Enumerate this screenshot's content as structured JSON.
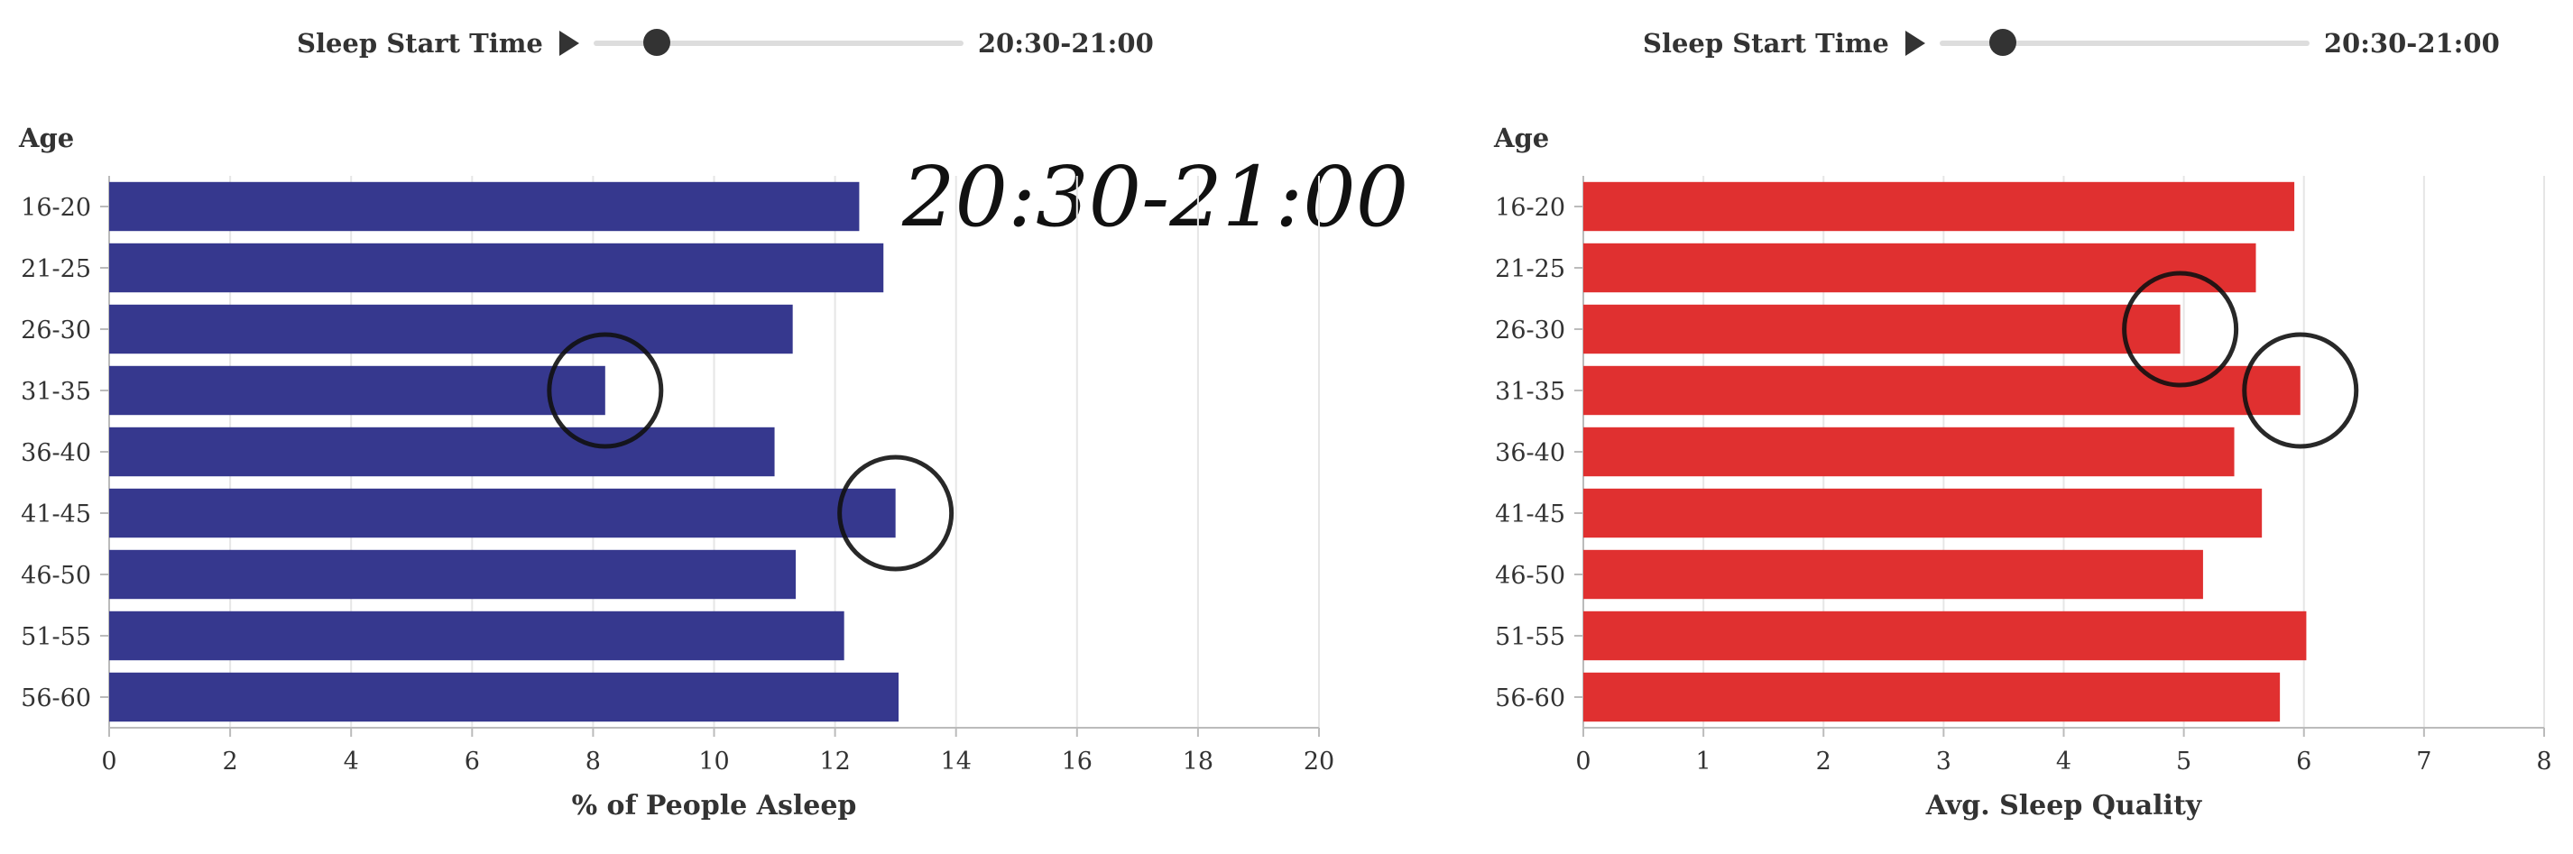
{
  "left_panel": {
    "slider": {
      "label": "Sleep Start Time",
      "value_text": "20:30-21:00",
      "position": 0.17
    },
    "annotation_text": "20:30-21:00"
  },
  "right_panel": {
    "slider": {
      "label": "Sleep Start Time",
      "value_text": "20:30-21:00",
      "position": 0.17
    }
  },
  "colors": {
    "left_bars": "#36388e",
    "right_bars": "#e03030",
    "grid": "#e6e6e6",
    "axis_text": "#333333"
  },
  "chart_data": [
    {
      "type": "bar",
      "orientation": "horizontal",
      "ylabel": "Age",
      "xlabel": "% of People Asleep",
      "categories": [
        "16-20",
        "21-25",
        "26-30",
        "31-35",
        "36-40",
        "41-45",
        "46-50",
        "51-55",
        "56-60"
      ],
      "values": [
        12.4,
        12.8,
        11.3,
        8.2,
        11.0,
        13.0,
        11.35,
        12.15,
        13.05
      ],
      "xlim": [
        0,
        20
      ],
      "xticks": [
        "0",
        "2",
        "4",
        "6",
        "8",
        "10",
        "12",
        "14",
        "16",
        "18",
        "20"
      ],
      "grid": true,
      "circled": [
        "31-35",
        "41-45"
      ]
    },
    {
      "type": "bar",
      "orientation": "horizontal",
      "ylabel": "Age",
      "xlabel": "Avg. Sleep Quality",
      "categories": [
        "16-20",
        "21-25",
        "26-30",
        "31-35",
        "36-40",
        "41-45",
        "46-50",
        "51-55",
        "56-60"
      ],
      "values": [
        5.92,
        5.6,
        4.97,
        5.97,
        5.42,
        5.65,
        5.16,
        6.02,
        5.8
      ],
      "xlim": [
        0,
        8
      ],
      "xticks": [
        "0",
        "1",
        "2",
        "3",
        "4",
        "5",
        "6",
        "7",
        "8"
      ],
      "grid": true,
      "circled": [
        "26-30",
        "31-35"
      ]
    }
  ]
}
